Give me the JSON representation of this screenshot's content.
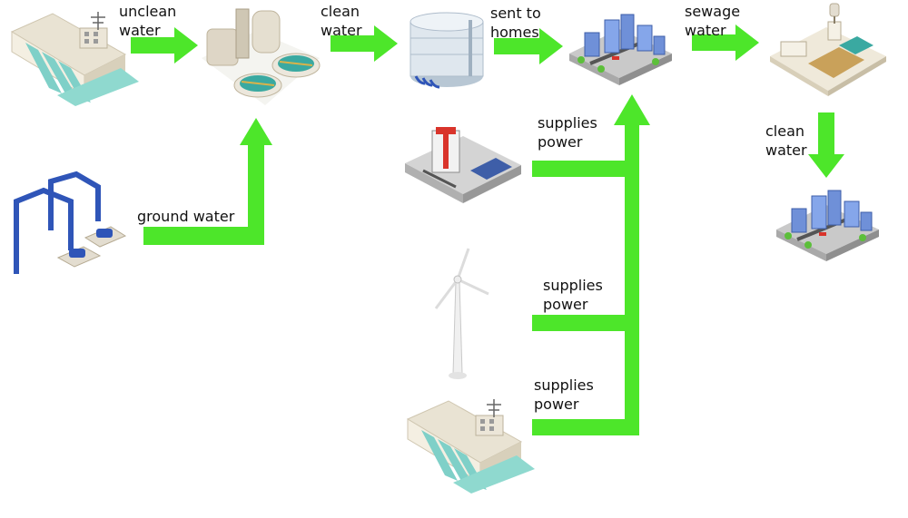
{
  "labels": {
    "unclean_water": "unclean\nwater",
    "clean_water_1": "clean\nwater",
    "sent_to_homes": "sent to\nhomes",
    "sewage_water": "sewage\nwater",
    "clean_water_2": "clean\nwater",
    "ground_water": "ground water",
    "supplies_power_1": "supplies\npower",
    "supplies_power_2": "supplies\npower",
    "supplies_power_3": "supplies\npower"
  },
  "icons": {
    "dam_source": "hydro-dam-icon",
    "treatment_plant": "water-treatment-plant-icon",
    "storage_tank": "water-storage-tank-icon",
    "city": "city-icon",
    "sewage_plant": "sewage-treatment-plant-icon",
    "city_clean": "city-icon",
    "pipes": "groundwater-pump-pipes-icon",
    "power_plant": "power-station-icon",
    "wind_turbine": "wind-turbine-icon",
    "hydro_power": "hydro-dam-icon"
  },
  "colors": {
    "arrow": "#4de62a",
    "pipe": "#2f55b8",
    "teal_water": "#3aa9a1"
  }
}
